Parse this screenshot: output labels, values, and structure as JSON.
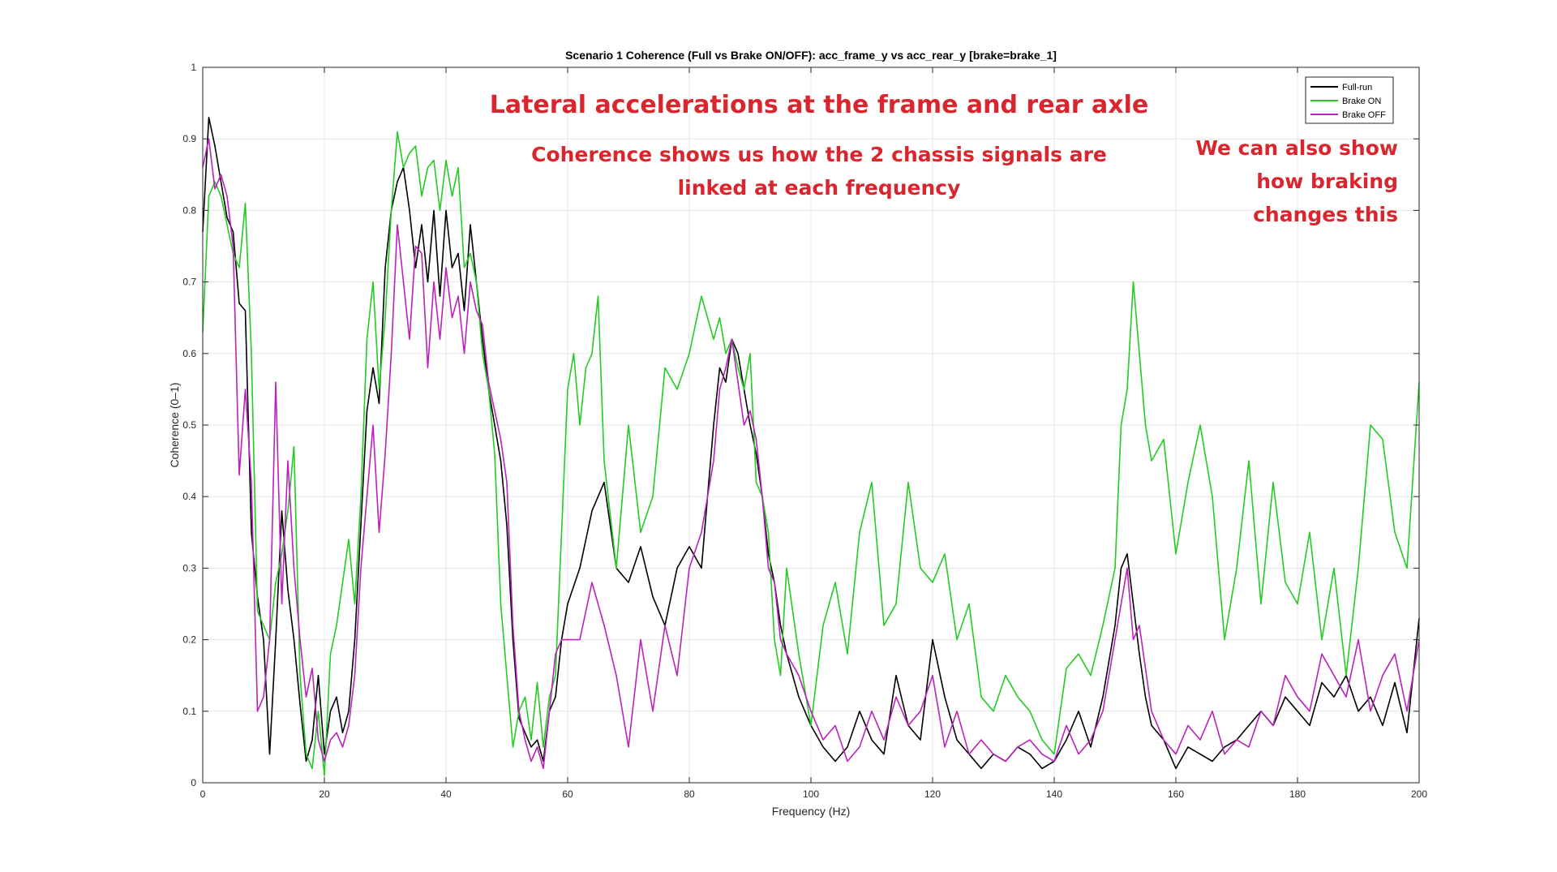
{
  "chart_data": {
    "type": "line",
    "title": "Scenario 1 Coherence (Full vs Brake ON/OFF): acc_frame_y vs acc_rear_y  [brake=brake_1]",
    "xlabel": "Frequency (Hz)",
    "ylabel": "Coherence (0–1)",
    "xlim": [
      0,
      200
    ],
    "ylim": [
      0,
      1
    ],
    "x_ticks": [
      0,
      20,
      40,
      60,
      80,
      100,
      120,
      140,
      160,
      180,
      200
    ],
    "y_ticks": [
      0,
      0.1,
      0.2,
      0.3,
      0.4,
      0.5,
      0.6,
      0.7,
      0.8,
      0.9,
      1
    ],
    "grid": true,
    "legend_position": "top-right",
    "series": [
      {
        "name": "Full-run",
        "color": "#000000",
        "x": [
          0,
          1,
          2,
          3,
          4,
          5,
          6,
          7,
          8,
          9,
          10,
          11,
          12,
          13,
          14,
          15,
          16,
          17,
          18,
          19,
          20,
          21,
          22,
          23,
          24,
          25,
          26,
          27,
          28,
          29,
          30,
          31,
          32,
          33,
          34,
          35,
          36,
          37,
          38,
          39,
          40,
          41,
          42,
          43,
          44,
          45,
          46,
          47,
          48,
          49,
          50,
          51,
          52,
          53,
          54,
          55,
          56,
          57,
          58,
          59,
          60,
          62,
          64,
          66,
          68,
          70,
          72,
          74,
          76,
          78,
          80,
          82,
          84,
          85,
          86,
          87,
          88,
          89,
          90,
          91,
          92,
          93,
          94,
          95,
          96,
          98,
          100,
          102,
          104,
          106,
          108,
          110,
          112,
          114,
          116,
          118,
          120,
          122,
          124,
          126,
          128,
          130,
          132,
          134,
          136,
          138,
          140,
          142,
          144,
          146,
          148,
          150,
          151,
          152,
          153,
          154,
          155,
          156,
          158,
          160,
          162,
          164,
          166,
          168,
          170,
          172,
          174,
          176,
          178,
          180,
          182,
          184,
          186,
          188,
          190,
          192,
          194,
          196,
          198,
          200
        ],
        "y": [
          0.77,
          0.93,
          0.89,
          0.84,
          0.79,
          0.77,
          0.67,
          0.66,
          0.35,
          0.26,
          0.2,
          0.04,
          0.2,
          0.38,
          0.27,
          0.2,
          0.11,
          0.03,
          0.06,
          0.15,
          0.04,
          0.1,
          0.12,
          0.07,
          0.1,
          0.2,
          0.36,
          0.52,
          0.58,
          0.53,
          0.72,
          0.8,
          0.84,
          0.86,
          0.8,
          0.72,
          0.78,
          0.7,
          0.8,
          0.68,
          0.8,
          0.72,
          0.74,
          0.66,
          0.78,
          0.7,
          0.62,
          0.55,
          0.5,
          0.45,
          0.36,
          0.2,
          0.09,
          0.07,
          0.05,
          0.06,
          0.03,
          0.1,
          0.12,
          0.2,
          0.25,
          0.3,
          0.38,
          0.42,
          0.3,
          0.28,
          0.33,
          0.26,
          0.22,
          0.3,
          0.33,
          0.3,
          0.5,
          0.58,
          0.56,
          0.62,
          0.6,
          0.55,
          0.5,
          0.46,
          0.4,
          0.32,
          0.28,
          0.22,
          0.18,
          0.12,
          0.08,
          0.05,
          0.03,
          0.05,
          0.1,
          0.06,
          0.04,
          0.15,
          0.08,
          0.06,
          0.2,
          0.12,
          0.06,
          0.04,
          0.02,
          0.04,
          0.03,
          0.05,
          0.04,
          0.02,
          0.03,
          0.06,
          0.1,
          0.05,
          0.12,
          0.22,
          0.3,
          0.32,
          0.25,
          0.18,
          0.12,
          0.08,
          0.06,
          0.02,
          0.05,
          0.04,
          0.03,
          0.05,
          0.06,
          0.08,
          0.1,
          0.08,
          0.12,
          0.1,
          0.08,
          0.14,
          0.12,
          0.15,
          0.1,
          0.12,
          0.08,
          0.14,
          0.07,
          0.23
        ]
      },
      {
        "name": "Brake ON",
        "color": "#22cc22",
        "x": [
          0,
          1,
          2,
          3,
          4,
          5,
          6,
          7,
          8,
          9,
          10,
          11,
          12,
          13,
          14,
          15,
          16,
          17,
          18,
          19,
          20,
          21,
          22,
          23,
          24,
          25,
          26,
          27,
          28,
          29,
          30,
          31,
          32,
          33,
          34,
          35,
          36,
          37,
          38,
          39,
          40,
          41,
          42,
          43,
          44,
          45,
          46,
          47,
          48,
          49,
          50,
          51,
          52,
          53,
          54,
          55,
          56,
          57,
          58,
          59,
          60,
          61,
          62,
          63,
          64,
          65,
          66,
          68,
          70,
          72,
          74,
          76,
          78,
          80,
          82,
          84,
          85,
          86,
          87,
          88,
          89,
          90,
          91,
          92,
          93,
          94,
          95,
          96,
          98,
          100,
          102,
          104,
          106,
          108,
          110,
          112,
          114,
          116,
          118,
          120,
          122,
          124,
          126,
          128,
          130,
          132,
          134,
          136,
          138,
          140,
          142,
          144,
          146,
          148,
          150,
          151,
          152,
          153,
          154,
          155,
          156,
          158,
          160,
          162,
          164,
          166,
          168,
          170,
          172,
          174,
          176,
          178,
          180,
          182,
          184,
          186,
          188,
          190,
          192,
          194,
          196,
          198,
          200
        ],
        "y": [
          0.63,
          0.82,
          0.84,
          0.82,
          0.78,
          0.74,
          0.72,
          0.81,
          0.6,
          0.24,
          0.22,
          0.2,
          0.28,
          0.32,
          0.38,
          0.47,
          0.15,
          0.04,
          0.02,
          0.1,
          0.01,
          0.18,
          0.22,
          0.28,
          0.34,
          0.25,
          0.4,
          0.62,
          0.7,
          0.55,
          0.65,
          0.8,
          0.91,
          0.86,
          0.88,
          0.89,
          0.82,
          0.86,
          0.87,
          0.8,
          0.87,
          0.82,
          0.86,
          0.72,
          0.74,
          0.7,
          0.6,
          0.55,
          0.46,
          0.25,
          0.15,
          0.05,
          0.1,
          0.12,
          0.06,
          0.14,
          0.05,
          0.12,
          0.15,
          0.35,
          0.55,
          0.6,
          0.5,
          0.58,
          0.6,
          0.68,
          0.45,
          0.3,
          0.5,
          0.35,
          0.4,
          0.58,
          0.55,
          0.6,
          0.68,
          0.62,
          0.65,
          0.6,
          0.62,
          0.58,
          0.55,
          0.6,
          0.42,
          0.4,
          0.35,
          0.2,
          0.15,
          0.3,
          0.18,
          0.08,
          0.22,
          0.28,
          0.18,
          0.35,
          0.42,
          0.22,
          0.25,
          0.42,
          0.3,
          0.28,
          0.32,
          0.2,
          0.25,
          0.12,
          0.1,
          0.15,
          0.12,
          0.1,
          0.06,
          0.04,
          0.16,
          0.18,
          0.15,
          0.22,
          0.3,
          0.5,
          0.55,
          0.7,
          0.6,
          0.5,
          0.45,
          0.48,
          0.32,
          0.42,
          0.5,
          0.4,
          0.2,
          0.3,
          0.45,
          0.25,
          0.42,
          0.28,
          0.25,
          0.35,
          0.2,
          0.3,
          0.15,
          0.3,
          0.5,
          0.48,
          0.35,
          0.3,
          0.56
        ]
      },
      {
        "name": "Brake OFF",
        "color": "#bb22bb",
        "x": [
          0,
          1,
          2,
          3,
          4,
          5,
          6,
          7,
          8,
          9,
          10,
          11,
          12,
          13,
          14,
          15,
          16,
          17,
          18,
          19,
          20,
          21,
          22,
          23,
          24,
          25,
          26,
          27,
          28,
          29,
          30,
          31,
          32,
          33,
          34,
          35,
          36,
          37,
          38,
          39,
          40,
          41,
          42,
          43,
          44,
          45,
          46,
          47,
          48,
          49,
          50,
          51,
          52,
          53,
          54,
          55,
          56,
          57,
          58,
          59,
          60,
          62,
          64,
          66,
          68,
          70,
          72,
          74,
          76,
          78,
          80,
          82,
          84,
          85,
          86,
          87,
          88,
          89,
          90,
          91,
          92,
          93,
          94,
          95,
          96,
          98,
          100,
          102,
          104,
          106,
          108,
          110,
          112,
          114,
          116,
          118,
          120,
          122,
          124,
          126,
          128,
          130,
          132,
          134,
          136,
          138,
          140,
          142,
          144,
          146,
          148,
          150,
          151,
          152,
          153,
          154,
          155,
          156,
          158,
          160,
          162,
          164,
          166,
          168,
          170,
          172,
          174,
          176,
          178,
          180,
          182,
          184,
          186,
          188,
          190,
          192,
          194,
          196,
          198,
          200
        ],
        "y": [
          0.86,
          0.9,
          0.83,
          0.85,
          0.82,
          0.75,
          0.43,
          0.55,
          0.42,
          0.1,
          0.12,
          0.2,
          0.56,
          0.25,
          0.45,
          0.3,
          0.2,
          0.12,
          0.16,
          0.06,
          0.03,
          0.06,
          0.07,
          0.05,
          0.08,
          0.15,
          0.3,
          0.4,
          0.5,
          0.35,
          0.46,
          0.6,
          0.78,
          0.7,
          0.62,
          0.75,
          0.74,
          0.58,
          0.7,
          0.62,
          0.72,
          0.65,
          0.68,
          0.6,
          0.7,
          0.66,
          0.64,
          0.56,
          0.52,
          0.48,
          0.42,
          0.22,
          0.1,
          0.06,
          0.03,
          0.05,
          0.02,
          0.1,
          0.18,
          0.2,
          0.2,
          0.2,
          0.28,
          0.22,
          0.15,
          0.05,
          0.2,
          0.1,
          0.22,
          0.15,
          0.3,
          0.35,
          0.45,
          0.55,
          0.58,
          0.62,
          0.56,
          0.5,
          0.52,
          0.48,
          0.4,
          0.3,
          0.28,
          0.2,
          0.18,
          0.15,
          0.1,
          0.06,
          0.08,
          0.03,
          0.05,
          0.1,
          0.06,
          0.12,
          0.08,
          0.1,
          0.15,
          0.05,
          0.1,
          0.04,
          0.06,
          0.04,
          0.03,
          0.05,
          0.06,
          0.04,
          0.03,
          0.08,
          0.04,
          0.06,
          0.1,
          0.2,
          0.25,
          0.3,
          0.2,
          0.22,
          0.16,
          0.1,
          0.06,
          0.04,
          0.08,
          0.06,
          0.1,
          0.04,
          0.06,
          0.05,
          0.1,
          0.08,
          0.15,
          0.12,
          0.1,
          0.18,
          0.15,
          0.12,
          0.2,
          0.1,
          0.15,
          0.18,
          0.1,
          0.2
        ]
      }
    ]
  },
  "annotations": {
    "heading": "Lateral accelerations at the frame and rear axle",
    "sub_line1": "Coherence shows us how the 2 chassis signals are",
    "sub_line2": "linked at each frequency",
    "side_line1": "We can also show",
    "side_line2": "how braking",
    "side_line3": "changes this"
  }
}
